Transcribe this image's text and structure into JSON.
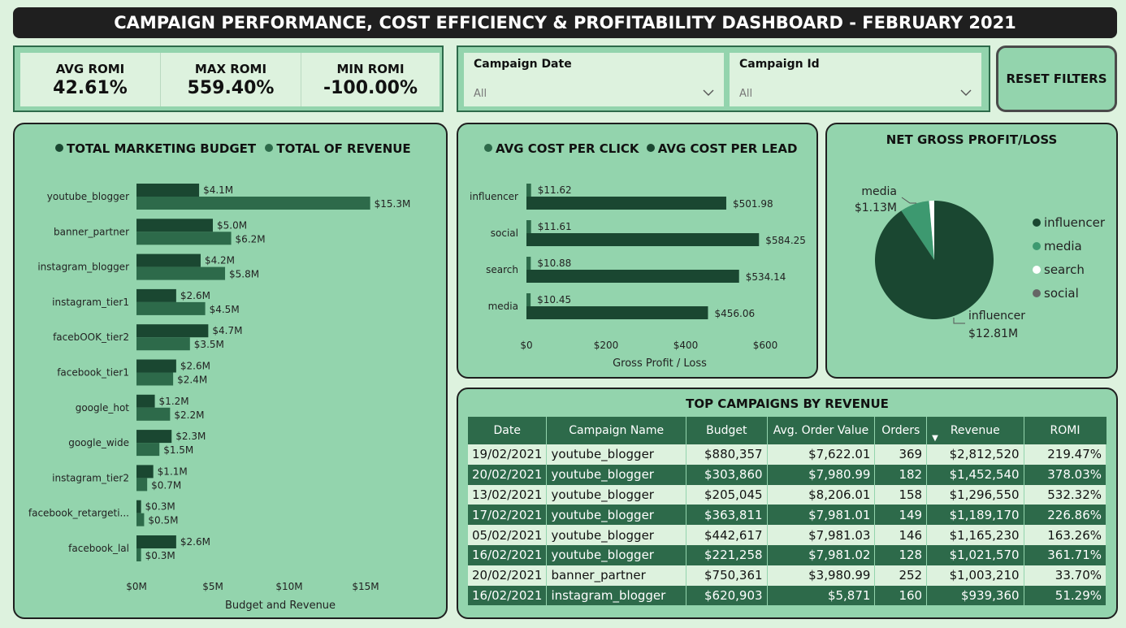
{
  "title": "CAMPAIGN PERFORMANCE, COST EFFICIENCY & PROFITABILITY DASHBOARD - FEBRUARY 2021",
  "kpis": [
    {
      "label": "AVG ROMI",
      "value": "42.61%"
    },
    {
      "label": "MAX ROMI",
      "value": "559.40%"
    },
    {
      "label": "MIN ROMI",
      "value": "-100.00%"
    }
  ],
  "filters": [
    {
      "label": "Campaign Date",
      "value": "All"
    },
    {
      "label": "Campaign Id",
      "value": "All"
    }
  ],
  "reset_label": "RESET FILTERS",
  "colors": {
    "dark": "#1a4731",
    "mid": "#2d6a4a",
    "light": "#3d9970",
    "panel": "#93d4ad",
    "bg": "#ddf2de"
  },
  "chart_data": [
    {
      "type": "bar",
      "orientation": "horizontal",
      "legend": [
        "TOTAL MARKETING BUDGET",
        "TOTAL OF REVENUE"
      ],
      "categories": [
        "youtube_blogger",
        "banner_partner",
        "instagram_blogger",
        "instagram_tier1",
        "facebOOK_tier2",
        "facebook_tier1",
        "google_hot",
        "google_wide",
        "instagram_tier2",
        "facebook_retargeti...",
        "facebook_lal"
      ],
      "series": [
        {
          "name": "TOTAL MARKETING BUDGET",
          "values": [
            4.1,
            5.0,
            4.2,
            2.6,
            4.7,
            2.6,
            1.2,
            2.3,
            1.1,
            0.3,
            2.6
          ],
          "labels": [
            "$4.1M",
            "$5.0M",
            "$4.2M",
            "$2.6M",
            "$4.7M",
            "$2.6M",
            "$1.2M",
            "$2.3M",
            "$1.1M",
            "$0.3M",
            "$2.6M"
          ]
        },
        {
          "name": "TOTAL OF REVENUE",
          "values": [
            15.3,
            6.2,
            5.8,
            4.5,
            3.5,
            2.4,
            2.2,
            1.5,
            0.7,
            0.5,
            0.3
          ],
          "labels": [
            "$15.3M",
            "$6.2M",
            "$5.8M",
            "$4.5M",
            "$3.5M",
            "$2.4M",
            "$2.2M",
            "$1.5M",
            "$0.7M",
            "$0.5M",
            "$0.3M"
          ]
        }
      ],
      "xlabel": "Budget and Revenue",
      "xticks": [
        "$0M",
        "$5M",
        "$10M",
        "$15M"
      ],
      "xlim": [
        0,
        15
      ]
    },
    {
      "type": "bar",
      "orientation": "horizontal",
      "legend": [
        "AVG COST PER CLICK",
        "AVG COST PER LEAD"
      ],
      "categories": [
        "influencer",
        "social",
        "search",
        "media"
      ],
      "series": [
        {
          "name": "AVG COST PER CLICK",
          "values": [
            11.62,
            11.61,
            10.88,
            10.45
          ],
          "labels": [
            "$11.62",
            "$11.61",
            "$10.88",
            "$10.45"
          ]
        },
        {
          "name": "AVG COST PER LEAD",
          "values": [
            501.98,
            584.25,
            534.14,
            456.06
          ],
          "labels": [
            "$501.98",
            "$584.25",
            "$534.14",
            "$456.06"
          ]
        }
      ],
      "xlabel": "Gross Profit / Loss",
      "xticks": [
        "$0",
        "$200",
        "$400",
        "$600"
      ],
      "xlim": [
        0,
        600
      ]
    },
    {
      "type": "pie",
      "title": "NET GROSS PROFIT/LOSS",
      "categories": [
        "influencer",
        "media",
        "search",
        "social"
      ],
      "values": [
        12.81,
        1.13,
        0.2,
        0.0
      ],
      "labels": [
        "influencer\n$12.81M",
        "media\n$1.13M"
      ],
      "legend": [
        "influencer",
        "media",
        "search",
        "social"
      ]
    }
  ],
  "pie_labels": {
    "media_name": "media",
    "media_value": "$1.13M",
    "infl_name": "influencer",
    "infl_value": "$12.81M"
  },
  "table": {
    "title": "TOP CAMPAIGNS BY REVENUE",
    "columns": [
      "Date",
      "Campaign Name",
      "Budget",
      "Avg. Order Value",
      "Orders",
      "Revenue",
      "ROMI"
    ],
    "rows": [
      [
        "19/02/2021",
        "youtube_blogger",
        "$880,357",
        "$7,622.01",
        "369",
        "$2,812,520",
        "219.47%"
      ],
      [
        "20/02/2021",
        "youtube_blogger",
        "$303,860",
        "$7,980.99",
        "182",
        "$1,452,540",
        "378.03%"
      ],
      [
        "13/02/2021",
        "youtube_blogger",
        "$205,045",
        "$8,206.01",
        "158",
        "$1,296,550",
        "532.32%"
      ],
      [
        "17/02/2021",
        "youtube_blogger",
        "$363,811",
        "$7,981.01",
        "149",
        "$1,189,170",
        "226.86%"
      ],
      [
        "05/02/2021",
        "youtube_blogger",
        "$442,617",
        "$7,981.03",
        "146",
        "$1,165,230",
        "163.26%"
      ],
      [
        "16/02/2021",
        "youtube_blogger",
        "$221,258",
        "$7,981.02",
        "128",
        "$1,021,570",
        "361.71%"
      ],
      [
        "20/02/2021",
        "banner_partner",
        "$750,361",
        "$3,980.99",
        "252",
        "$1,003,210",
        "33.70%"
      ],
      [
        "16/02/2021",
        "instagram_blogger",
        "$620,903",
        "$5,871",
        "160",
        "$939,360",
        "51.29%"
      ]
    ]
  }
}
